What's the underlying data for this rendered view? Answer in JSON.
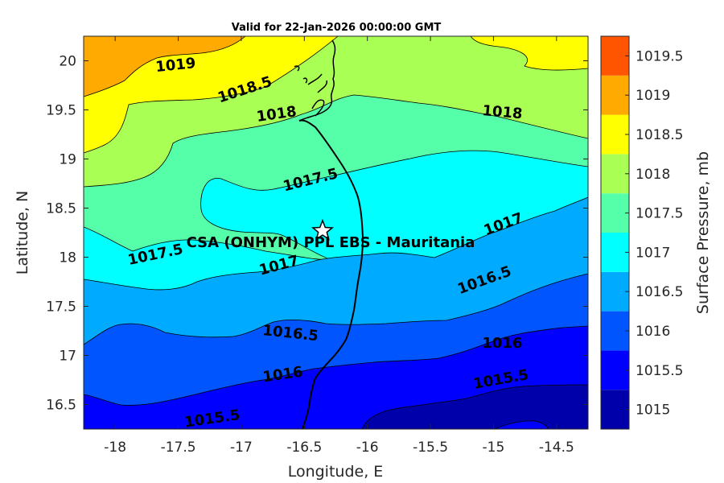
{
  "title": "Valid for 22-Jan-2026 00:00:00 GMT",
  "xlabel": "Longitude, E",
  "ylabel": "Latitude, N",
  "colorbar_label": "Surface Pressure, mb",
  "site_label": "CSA (ONHYM) PPL EBS  - Mauritania",
  "site": {
    "lon": -16.33,
    "lat": 18.27
  },
  "x_ticks": [
    "-18",
    "-17.5",
    "-17",
    "-16.5",
    "-16",
    "-15.5",
    "-15",
    "-14.5"
  ],
  "y_ticks": [
    "16.5",
    "17",
    "17.5",
    "18",
    "18.5",
    "19",
    "19.5",
    "20"
  ],
  "colorbar": {
    "levels": [
      "1015",
      "1015.5",
      "1016",
      "1016.5",
      "1017",
      "1017.5",
      "1018",
      "1018.5",
      "1019",
      "1019.5"
    ],
    "colors": [
      "#0000aa",
      "#0000ff",
      "#0055ff",
      "#00aaff",
      "#00ffff",
      "#55ffaa",
      "#aaff55",
      "#ffff00",
      "#ffaa00",
      "#ff5500"
    ]
  },
  "contour_labels": [
    {
      "text": "1019",
      "lon": -17.52,
      "lat": 19.95,
      "angle": -6
    },
    {
      "text": "1018.5",
      "lon": -16.97,
      "lat": 19.7,
      "angle": -18
    },
    {
      "text": "1018",
      "lon": -16.72,
      "lat": 19.45,
      "angle": -8
    },
    {
      "text": "1018",
      "lon": -14.93,
      "lat": 19.47,
      "angle": 5
    },
    {
      "text": "1017.5",
      "lon": -16.45,
      "lat": 18.78,
      "angle": -14
    },
    {
      "text": "1017",
      "lon": -14.92,
      "lat": 18.33,
      "angle": -20
    },
    {
      "text": "1017.5",
      "lon": -17.68,
      "lat": 18.02,
      "angle": -12
    },
    {
      "text": "1017",
      "lon": -16.7,
      "lat": 17.91,
      "angle": -15
    },
    {
      "text": "1016.5",
      "lon": -15.07,
      "lat": 17.76,
      "angle": -20
    },
    {
      "text": "1016.5",
      "lon": -16.61,
      "lat": 17.22,
      "angle": 6
    },
    {
      "text": "1016",
      "lon": -14.93,
      "lat": 17.12,
      "angle": 0
    },
    {
      "text": "1016",
      "lon": -16.67,
      "lat": 16.8,
      "angle": -8
    },
    {
      "text": "1015.5",
      "lon": -14.94,
      "lat": 16.75,
      "angle": -10
    },
    {
      "text": "1015.5",
      "lon": -17.23,
      "lat": 16.35,
      "angle": -8
    }
  ]
}
